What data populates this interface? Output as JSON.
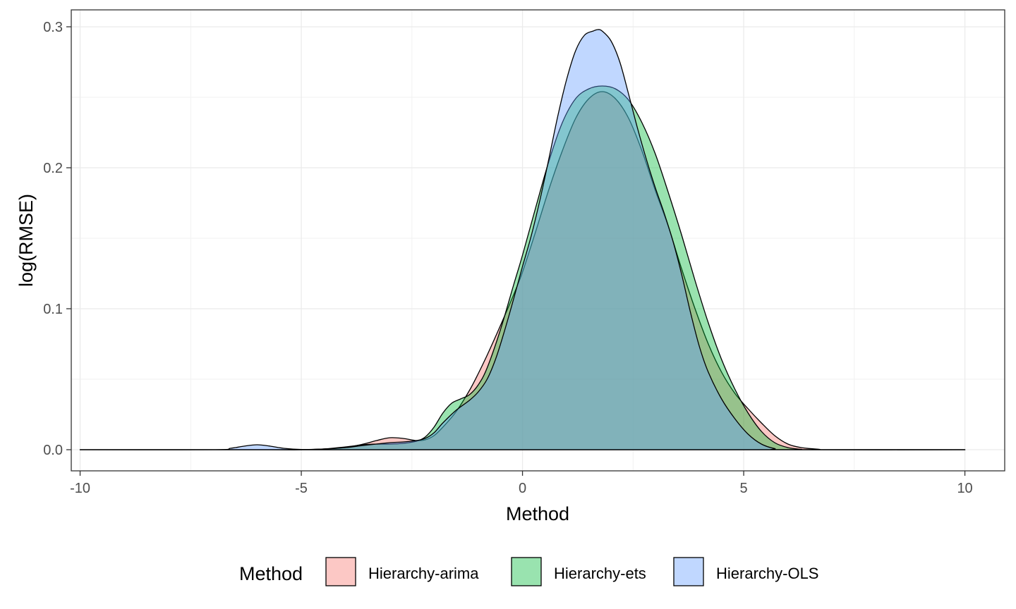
{
  "chart_data": {
    "type": "area",
    "subtype": "density",
    "title": "",
    "xlabel": "Method",
    "ylabel": "log(RMSE)",
    "xlim": [
      -10.2,
      10.9
    ],
    "ylim": [
      -0.015,
      0.312
    ],
    "x_ticks": [
      -10,
      -5,
      0,
      5,
      10
    ],
    "x_tick_labels": [
      "-10",
      "-5",
      "0",
      "5",
      "10"
    ],
    "y_ticks": [
      0.0,
      0.1,
      0.2,
      0.3
    ],
    "y_tick_labels": [
      "0.0",
      "0.1",
      "0.2",
      "0.3"
    ],
    "grid": true,
    "legend": {
      "title": "Method",
      "position": "bottom"
    },
    "series": [
      {
        "name": "Hierarchy-arima",
        "color": "#F8766D",
        "points": [
          [
            -10,
            0
          ],
          [
            -6,
            0
          ],
          [
            -5,
            0
          ],
          [
            -4.5,
            0.0005
          ],
          [
            -4,
            0.0015
          ],
          [
            -3.6,
            0.004
          ],
          [
            -3.3,
            0.0065
          ],
          [
            -3,
            0.0085
          ],
          [
            -2.7,
            0.008
          ],
          [
            -2.4,
            0.0065
          ],
          [
            -2.2,
            0.007
          ],
          [
            -2,
            0.01
          ],
          [
            -1.8,
            0.016
          ],
          [
            -1.5,
            0.027
          ],
          [
            -1.2,
            0.042
          ],
          [
            -1,
            0.054
          ],
          [
            -0.8,
            0.067
          ],
          [
            -0.5,
            0.088
          ],
          [
            -0.2,
            0.11
          ],
          [
            0,
            0.126
          ],
          [
            0.3,
            0.155
          ],
          [
            0.6,
            0.185
          ],
          [
            0.9,
            0.212
          ],
          [
            1.2,
            0.235
          ],
          [
            1.5,
            0.249
          ],
          [
            1.8,
            0.254
          ],
          [
            2.1,
            0.249
          ],
          [
            2.4,
            0.235
          ],
          [
            2.7,
            0.212
          ],
          [
            3,
            0.184
          ],
          [
            3.3,
            0.158
          ],
          [
            3.6,
            0.128
          ],
          [
            3.9,
            0.1
          ],
          [
            4.2,
            0.075
          ],
          [
            4.5,
            0.055
          ],
          [
            4.8,
            0.04
          ],
          [
            5.1,
            0.029
          ],
          [
            5.4,
            0.019
          ],
          [
            5.7,
            0.01
          ],
          [
            6,
            0.004
          ],
          [
            6.3,
            0.0015
          ],
          [
            6.7,
            0.0003
          ],
          [
            7,
            0
          ],
          [
            10,
            0
          ]
        ]
      },
      {
        "name": "Hierarchy-ets",
        "color": "#00BA38",
        "points": [
          [
            -10,
            0
          ],
          [
            -6,
            0
          ],
          [
            -5,
            0
          ],
          [
            -4.5,
            0.0005
          ],
          [
            -4,
            0.002
          ],
          [
            -3.6,
            0.0035
          ],
          [
            -3.3,
            0.004
          ],
          [
            -3,
            0.004
          ],
          [
            -2.7,
            0.0045
          ],
          [
            -2.4,
            0.006
          ],
          [
            -2.2,
            0.009
          ],
          [
            -2,
            0.016
          ],
          [
            -1.8,
            0.026
          ],
          [
            -1.6,
            0.033
          ],
          [
            -1.4,
            0.036
          ],
          [
            -1.2,
            0.039
          ],
          [
            -1,
            0.046
          ],
          [
            -0.8,
            0.058
          ],
          [
            -0.5,
            0.085
          ],
          [
            -0.2,
            0.117
          ],
          [
            0,
            0.138
          ],
          [
            0.3,
            0.172
          ],
          [
            0.6,
            0.205
          ],
          [
            0.9,
            0.232
          ],
          [
            1.2,
            0.249
          ],
          [
            1.5,
            0.256
          ],
          [
            1.8,
            0.258
          ],
          [
            2.1,
            0.256
          ],
          [
            2.4,
            0.248
          ],
          [
            2.7,
            0.232
          ],
          [
            3,
            0.21
          ],
          [
            3.3,
            0.182
          ],
          [
            3.6,
            0.152
          ],
          [
            3.9,
            0.12
          ],
          [
            4.2,
            0.09
          ],
          [
            4.5,
            0.064
          ],
          [
            4.8,
            0.043
          ],
          [
            5.1,
            0.026
          ],
          [
            5.4,
            0.013
          ],
          [
            5.7,
            0.005
          ],
          [
            6,
            0.0015
          ],
          [
            6.3,
            0.0003
          ],
          [
            6.6,
            0
          ],
          [
            10,
            0
          ]
        ]
      },
      {
        "name": "Hierarchy-OLS",
        "color": "#619CFF",
        "points": [
          [
            -10,
            0
          ],
          [
            -7,
            0
          ],
          [
            -6.6,
            0.001
          ],
          [
            -6.3,
            0.0025
          ],
          [
            -6,
            0.0035
          ],
          [
            -5.7,
            0.0025
          ],
          [
            -5.4,
            0.001
          ],
          [
            -5,
            0.0002
          ],
          [
            -4.5,
            0.0005
          ],
          [
            -4,
            0.0015
          ],
          [
            -3.6,
            0.003
          ],
          [
            -3.3,
            0.004
          ],
          [
            -3,
            0.005
          ],
          [
            -2.7,
            0.0055
          ],
          [
            -2.4,
            0.0065
          ],
          [
            -2.2,
            0.008
          ],
          [
            -2,
            0.012
          ],
          [
            -1.8,
            0.019
          ],
          [
            -1.5,
            0.028
          ],
          [
            -1.2,
            0.035
          ],
          [
            -1,
            0.041
          ],
          [
            -0.8,
            0.05
          ],
          [
            -0.6,
            0.065
          ],
          [
            -0.4,
            0.085
          ],
          [
            -0.2,
            0.107
          ],
          [
            0,
            0.13
          ],
          [
            0.2,
            0.152
          ],
          [
            0.4,
            0.178
          ],
          [
            0.6,
            0.207
          ],
          [
            0.8,
            0.237
          ],
          [
            1,
            0.263
          ],
          [
            1.2,
            0.283
          ],
          [
            1.4,
            0.294
          ],
          [
            1.6,
            0.297
          ],
          [
            1.7,
            0.298
          ],
          [
            1.8,
            0.297
          ],
          [
            2,
            0.29
          ],
          [
            2.2,
            0.275
          ],
          [
            2.4,
            0.252
          ],
          [
            2.6,
            0.228
          ],
          [
            2.8,
            0.206
          ],
          [
            3,
            0.186
          ],
          [
            3.2,
            0.168
          ],
          [
            3.4,
            0.148
          ],
          [
            3.6,
            0.124
          ],
          [
            3.8,
            0.097
          ],
          [
            4,
            0.073
          ],
          [
            4.2,
            0.055
          ],
          [
            4.5,
            0.036
          ],
          [
            4.8,
            0.022
          ],
          [
            5.1,
            0.011
          ],
          [
            5.4,
            0.004
          ],
          [
            5.7,
            0.0008
          ],
          [
            6,
            0
          ],
          [
            10,
            0
          ]
        ]
      }
    ]
  }
}
